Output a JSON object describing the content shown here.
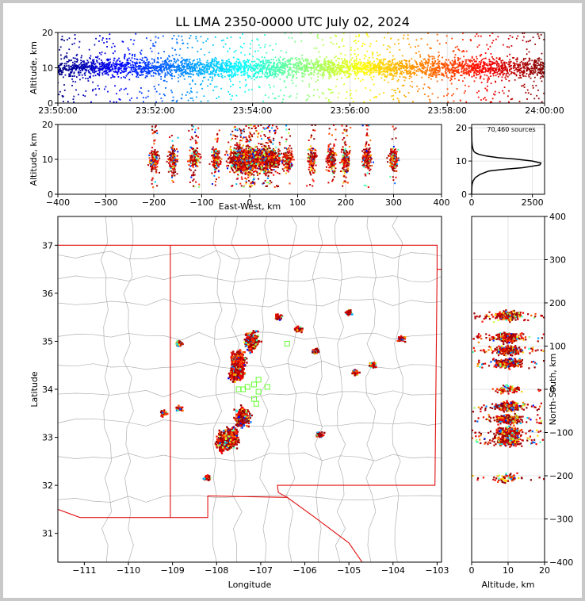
{
  "title": "LL LMA 2350-0000 UTC July 02, 2024",
  "colors": {
    "state_border": "#e01010",
    "county_border": "#b0b0b0",
    "stations": "#66ff33",
    "axes": "#000000",
    "grid": "#dddddd"
  },
  "chart_data": [
    {
      "type": "scatter",
      "panel": "altitude-time",
      "xlabel": "",
      "ylabel": "Altitude, km",
      "x_ticks": [
        "23:50:00",
        "23:52:00",
        "23:54:00",
        "23:56:00",
        "23:58:00",
        "24:00:00"
      ],
      "y_ticks": [
        "0",
        "10",
        "20"
      ],
      "xlim": [
        "23:50:00",
        "24:00:00"
      ],
      "ylim": [
        0,
        20
      ],
      "color_by": "time",
      "colormap": "jet",
      "altitude_core_km": [
        5,
        15
      ],
      "altitude_spread_km": [
        0,
        20
      ]
    },
    {
      "type": "scatter",
      "panel": "altitude-east-west",
      "xlabel": "East-West, km",
      "ylabel": "Altitude, km",
      "x_ticks": [
        "−400",
        "−300",
        "−200",
        "−100",
        "0",
        "100",
        "200",
        "300",
        "400"
      ],
      "y_ticks": [
        "0",
        "10",
        "20"
      ],
      "xlim": [
        -400,
        400
      ],
      "ylim": [
        0,
        20
      ],
      "clusters_x_km": [
        -200,
        -160,
        -115,
        -70,
        -20,
        5,
        40,
        80,
        130,
        170,
        200,
        245,
        300
      ]
    },
    {
      "type": "line",
      "panel": "altitude-histogram",
      "annotation": "70,460 sources",
      "x_ticks": [
        "0",
        "2500"
      ],
      "y_ticks": [
        "0",
        "10",
        "20"
      ],
      "xlim": [
        0,
        3000
      ],
      "ylim": [
        0,
        21
      ],
      "x": [
        0,
        5,
        20,
        60,
        150,
        350,
        700,
        1300,
        2100,
        2800,
        2850,
        2500,
        1800,
        1100,
        600,
        300,
        150,
        80,
        40,
        20,
        10,
        5,
        2,
        1
      ],
      "y": [
        0,
        2,
        3,
        4,
        5,
        6,
        7,
        7.5,
        8,
        8.8,
        9.4,
        10,
        10.6,
        11,
        11.5,
        12,
        12.5,
        13,
        14,
        15,
        16,
        17,
        18,
        20
      ]
    },
    {
      "type": "scatter",
      "panel": "plan-view",
      "xlabel": "Longitude",
      "ylabel": "Latitude",
      "x_ticks": [
        "−111",
        "−110",
        "−109",
        "−108",
        "−107",
        "−106",
        "−105",
        "−104",
        "−103"
      ],
      "y_ticks": [
        "31",
        "32",
        "33",
        "34",
        "35",
        "36",
        "37"
      ],
      "xlim": [
        -111.6,
        -102.9
      ],
      "ylim": [
        30.4,
        37.6
      ],
      "clusters": [
        {
          "lon": -107.2,
          "lat": 35.0
        },
        {
          "lon": -107.5,
          "lat": 34.6
        },
        {
          "lon": -107.55,
          "lat": 34.35
        },
        {
          "lon": -107.4,
          "lat": 33.4
        },
        {
          "lon": -107.65,
          "lat": 33.0
        },
        {
          "lon": -107.85,
          "lat": 32.9
        },
        {
          "lon": -108.85,
          "lat": 33.6
        },
        {
          "lon": -109.2,
          "lat": 33.5
        },
        {
          "lon": -106.6,
          "lat": 35.5
        },
        {
          "lon": -106.15,
          "lat": 35.25
        },
        {
          "lon": -105.0,
          "lat": 35.6
        },
        {
          "lon": -104.45,
          "lat": 34.5
        },
        {
          "lon": -104.85,
          "lat": 34.35
        },
        {
          "lon": -105.75,
          "lat": 34.8
        },
        {
          "lon": -103.8,
          "lat": 35.05
        },
        {
          "lon": -108.85,
          "lat": 34.95
        },
        {
          "lon": -108.2,
          "lat": 32.15
        },
        {
          "lon": -105.65,
          "lat": 33.05
        }
      ],
      "stations": [
        {
          "lon": -107.05,
          "lat": 34.2
        },
        {
          "lon": -107.3,
          "lat": 34.05
        },
        {
          "lon": -107.4,
          "lat": 34.0
        },
        {
          "lon": -107.05,
          "lat": 33.95
        },
        {
          "lon": -106.85,
          "lat": 34.05
        },
        {
          "lon": -107.15,
          "lat": 34.1
        },
        {
          "lon": -107.15,
          "lat": 33.8
        },
        {
          "lon": -106.4,
          "lat": 34.95
        },
        {
          "lon": -107.5,
          "lat": 34.0
        },
        {
          "lon": -107.1,
          "lat": 33.7
        }
      ]
    },
    {
      "type": "scatter",
      "panel": "north-south-altitude",
      "xlabel": "Altitude, km",
      "ylabel": "North-South, km",
      "x_ticks": [
        "0",
        "10",
        "20"
      ],
      "y_ticks": [
        "−400",
        "−300",
        "−200",
        "−100",
        "0",
        "100",
        "200",
        "300",
        "400"
      ],
      "xlim": [
        0,
        20
      ],
      "ylim": [
        -400,
        400
      ],
      "clusters_y_km": [
        170,
        120,
        90,
        60,
        0,
        -40,
        -70,
        -100,
        -120,
        -205
      ]
    }
  ]
}
